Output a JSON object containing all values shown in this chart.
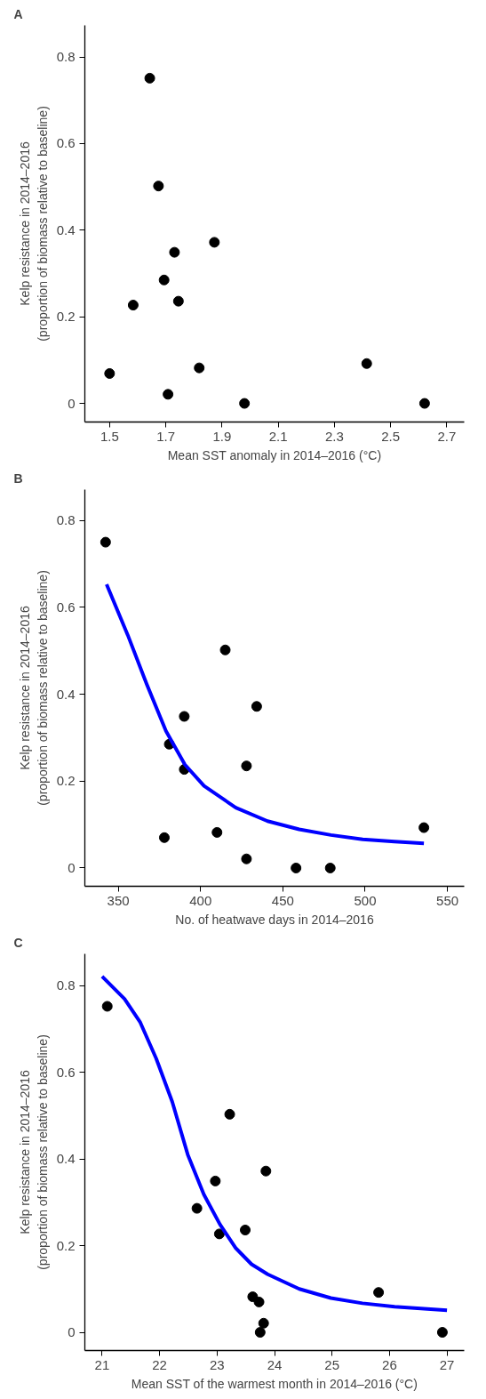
{
  "chart_data": [
    {
      "type": "scatter",
      "title": "A",
      "xlabel": "Mean SST anomaly in 2014–2016 (°C)",
      "ylabel": "Kelp resistance in 2014–2016\n(proportion of biomass relative to baseline)",
      "xlim": [
        1.412,
        2.762
      ],
      "ylim": [
        -0.043,
        0.873
      ],
      "xticks": [
        1.5,
        1.7,
        1.9,
        2.1,
        2.3,
        2.5,
        2.7
      ],
      "yticks": [
        0,
        0.2,
        0.4,
        0.6,
        0.8
      ],
      "grid": false,
      "series": [
        {
          "marker": "circle",
          "color": "#000000",
          "x": [
            1.5,
            1.643,
            1.674,
            1.694,
            1.584,
            1.731,
            1.745,
            1.873,
            1.819,
            1.708,
            1.98,
            2.415,
            2.621
          ],
          "values": [
            0.069,
            0.751,
            0.502,
            0.285,
            0.227,
            0.349,
            0.236,
            0.372,
            0.082,
            0.021,
            0,
            0.092,
            0
          ]
        }
      ]
    },
    {
      "type": "scatter",
      "title": "B",
      "xlabel": "No. of heatwave days in 2014–2016",
      "ylabel": "Kelp resistance in 2014–2016\n(proportion of biomass relative to baseline)",
      "xlim": [
        329.7,
        560.2
      ],
      "ylim": [
        -0.042,
        0.871
      ],
      "xticks": [
        350,
        400,
        450,
        500,
        550
      ],
      "yticks": [
        0,
        0.2,
        0.4,
        0.6,
        0.8
      ],
      "grid": false,
      "series": [
        {
          "marker": "circle",
          "color": "#000000",
          "x": [
            342.3,
            415.0,
            434.1,
            390.1,
            381.0,
            390.1,
            427.9,
            378.0,
            410.0,
            427.9,
            458.0,
            478.8,
            535.7
          ],
          "values": [
            0.75,
            0.502,
            0.372,
            0.349,
            0.285,
            0.227,
            0.235,
            0.07,
            0.082,
            0.021,
            0,
            0,
            0.093
          ]
        },
        {
          "type": "line",
          "color": "#0000ff",
          "line_style": "solid",
          "x": [
            342.9,
            355.8,
            367.4,
            379,
            390.5,
            402.1,
            421.4,
            440.7,
            459.9,
            479.2,
            498.5,
            517.8,
            535.7
          ],
          "values": [
            0.653,
            0.536,
            0.422,
            0.315,
            0.238,
            0.189,
            0.139,
            0.108,
            0.089,
            0.076,
            0.066,
            0.061,
            0.057
          ]
        }
      ]
    },
    {
      "type": "scatter",
      "title": "C",
      "xlabel": "Mean SST of the warmest month in 2014–2016 (°C)",
      "ylabel": "Kelp resistance in 2014–2016\n(proportion of biomass relative to baseline)",
      "xlim": [
        20.7,
        27.3
      ],
      "ylim": [
        -0.042,
        0.873
      ],
      "xticks": [
        21,
        22,
        23,
        24,
        25,
        26,
        27
      ],
      "yticks": [
        0,
        0.2,
        0.4,
        0.6,
        0.8
      ],
      "grid": false,
      "series": [
        {
          "marker": "circle",
          "color": "#000000",
          "x": [
            21.09,
            23.22,
            23.85,
            22.97,
            22.65,
            23.04,
            23.49,
            23.62,
            23.73,
            23.81,
            23.75,
            25.81,
            26.92
          ],
          "values": [
            0.752,
            0.503,
            0.372,
            0.349,
            0.286,
            0.227,
            0.236,
            0.082,
            0.07,
            0.021,
            0,
            0.092,
            0
          ]
        },
        {
          "type": "line",
          "color": "#0000ff",
          "line_style": "solid",
          "x": [
            21,
            21.39,
            21.66,
            21.94,
            22.22,
            22.49,
            22.77,
            23.05,
            23.32,
            23.6,
            23.88,
            24.43,
            24.98,
            25.53,
            26.09,
            27
          ],
          "values": [
            0.821,
            0.769,
            0.716,
            0.632,
            0.532,
            0.41,
            0.318,
            0.249,
            0.195,
            0.157,
            0.134,
            0.1,
            0.079,
            0.067,
            0.059,
            0.051
          ]
        }
      ]
    }
  ]
}
